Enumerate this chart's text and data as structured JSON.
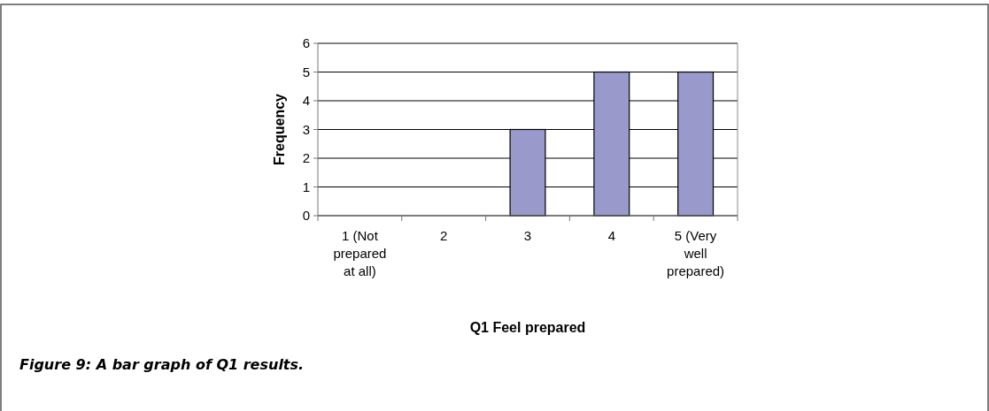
{
  "chart_data": {
    "type": "bar",
    "xlabel": "Q1 Feel prepared",
    "ylabel": "Frequency",
    "categories": [
      "1 (Not prepared at all)",
      "2",
      "3",
      "4",
      "5 (Very well prepared)"
    ],
    "values": [
      0,
      0,
      3,
      5,
      5
    ],
    "color": "#9999cc",
    "ylim": [
      0,
      6
    ],
    "yticks": [
      0,
      1,
      2,
      3,
      4,
      5,
      6
    ],
    "grid": "y",
    "annotations": [
      "Figure 9: A bar graph of Q1 results."
    ]
  }
}
